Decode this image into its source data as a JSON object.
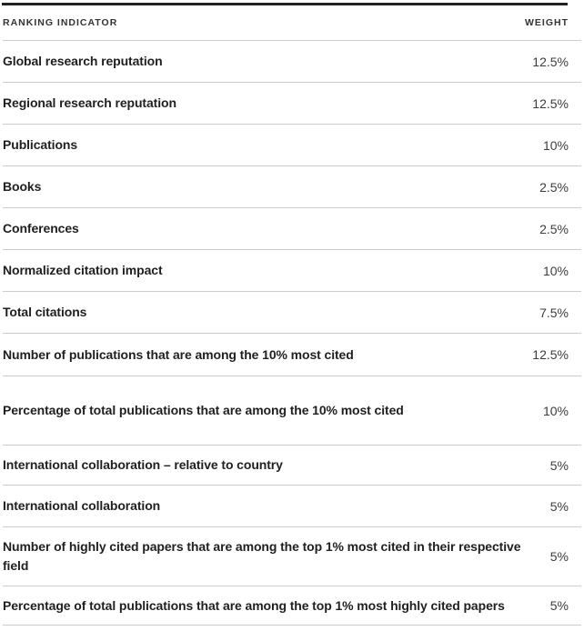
{
  "table": {
    "columns": {
      "indicator": "RANKING INDICATOR",
      "weight": "WEIGHT"
    },
    "rows": [
      {
        "indicator": "Global research reputation",
        "weight": "12.5%"
      },
      {
        "indicator": "Regional research reputation",
        "weight": "12.5%"
      },
      {
        "indicator": "Publications",
        "weight": "10%"
      },
      {
        "indicator": "Books",
        "weight": "2.5%"
      },
      {
        "indicator": "Conferences",
        "weight": "2.5%"
      },
      {
        "indicator": "Normalized citation impact",
        "weight": "10%"
      },
      {
        "indicator": "Total citations",
        "weight": "7.5%"
      },
      {
        "indicator": "Number of publications that are among the 10% most cited",
        "weight": "12.5%"
      },
      {
        "indicator": "Percentage of total publications that are among the 10% most cited",
        "weight": "10%"
      },
      {
        "indicator": "International collaboration – relative to country",
        "weight": "5%"
      },
      {
        "indicator": "International collaboration",
        "weight": "5%"
      },
      {
        "indicator": "Number of highly cited papers that are among the top 1% most cited in their respective field",
        "weight": "5%"
      },
      {
        "indicator": "Percentage of total publications that are among the top 1% most highly cited papers",
        "weight": "5%"
      }
    ],
    "colors": {
      "top_bar": "#222222",
      "divider": "#cccccc",
      "label_text": "#1f1f1f",
      "value_text": "#3d3d3d",
      "header_text": "#333333"
    }
  }
}
